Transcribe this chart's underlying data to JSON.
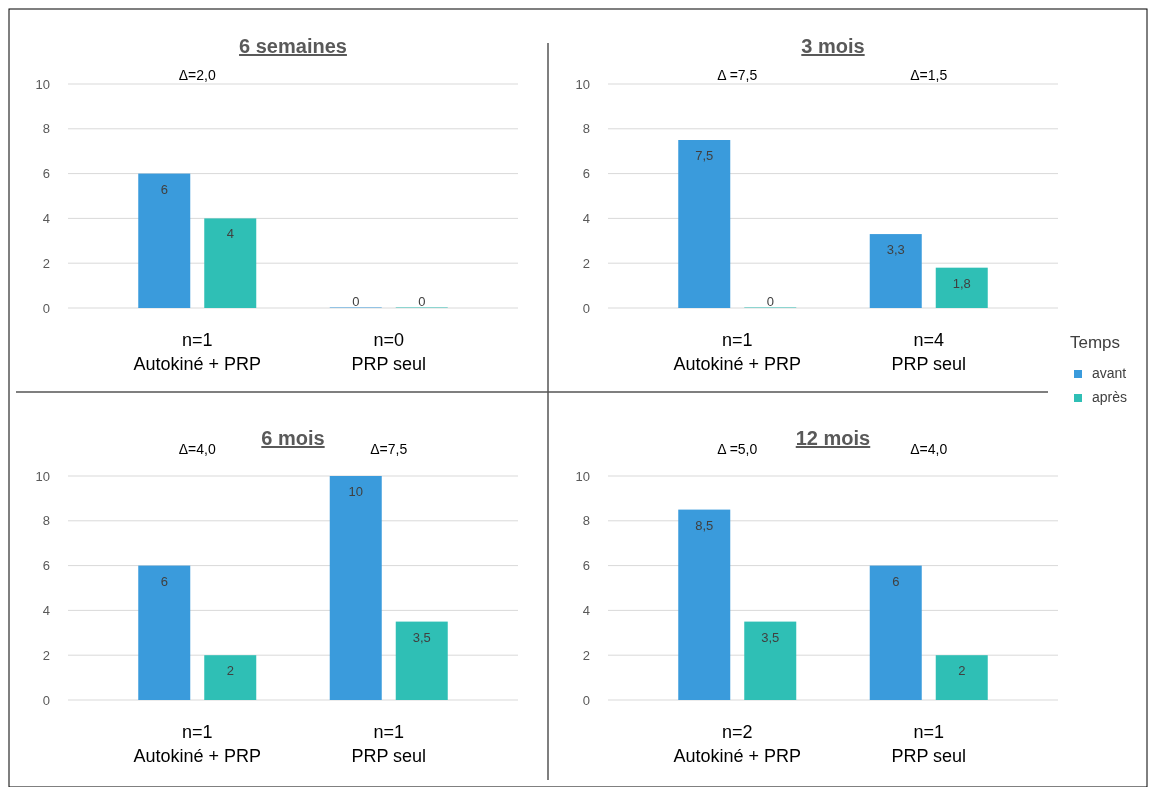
{
  "chart_data": [
    {
      "type": "bar",
      "title": "6 semaines",
      "categories": [
        "n=1\nAutokiné + PRP",
        "n=0\nPRP seul"
      ],
      "series": [
        {
          "color": "#3a9bdc",
          "values": [
            6,
            0
          ],
          "value_labels": [
            "6",
            "0"
          ]
        },
        {
          "color": "#2fbfb5",
          "values": [
            4,
            0
          ],
          "value_labels": [
            "4",
            "0"
          ]
        }
      ],
      "ylim": [
        0,
        10
      ],
      "yticks": [
        0,
        2,
        4,
        6,
        8,
        10
      ],
      "grid": "y",
      "annotations": [
        "Δ=2,0"
      ]
    },
    {
      "type": "bar",
      "title": "3 mois",
      "categories": [
        "n=1\nAutokiné + PRP",
        "n=4\nPRP seul"
      ],
      "series": [
        {
          "name": "avant",
          "color": "#3a9bdc",
          "values": [
            7.5,
            3.3
          ],
          "value_labels": [
            "7,5",
            "3,3"
          ]
        },
        {
          "name": "après",
          "color": "#2fbfb5",
          "values": [
            0,
            1.8
          ],
          "value_labels": [
            "0",
            "1,8"
          ]
        }
      ],
      "ylim": [
        0,
        10
      ],
      "yticks": [
        0,
        2,
        4,
        6,
        8,
        10
      ],
      "grid": "y",
      "legend": "right",
      "legend_title": "Temps",
      "annotations": [
        "Δ =7,5",
        "Δ=1,5"
      ]
    },
    {
      "type": "bar",
      "title": "6 mois",
      "categories": [
        "n=1\nAutokiné + PRP",
        "n=1\nPRP seul"
      ],
      "series": [
        {
          "color": "#3a9bdc",
          "values": [
            6,
            10
          ],
          "value_labels": [
            "6",
            "10"
          ]
        },
        {
          "color": "#2fbfb5",
          "values": [
            2,
            3.5
          ],
          "value_labels": [
            "2",
            "3,5"
          ]
        }
      ],
      "ylim": [
        0,
        10
      ],
      "yticks": [
        0,
        2,
        4,
        6,
        8,
        10
      ],
      "grid": "y",
      "annotations": [
        "Δ=4,0",
        "Δ=7,5"
      ]
    },
    {
      "type": "bar",
      "title": "12 mois",
      "categories": [
        "n=2\nAutokiné + PRP",
        "n=1\nPRP seul"
      ],
      "series": [
        {
          "color": "#3a9bdc",
          "values": [
            8.5,
            6
          ],
          "value_labels": [
            "8,5",
            "6"
          ]
        },
        {
          "color": "#2fbfb5",
          "values": [
            3.5,
            2
          ],
          "value_labels": [
            "3,5",
            "2"
          ]
        }
      ],
      "ylim": [
        0,
        10
      ],
      "yticks": [
        0,
        2,
        4,
        6,
        8,
        10
      ],
      "grid": "y",
      "annotations": [
        "Δ =5,0",
        "Δ=4,0"
      ]
    }
  ]
}
